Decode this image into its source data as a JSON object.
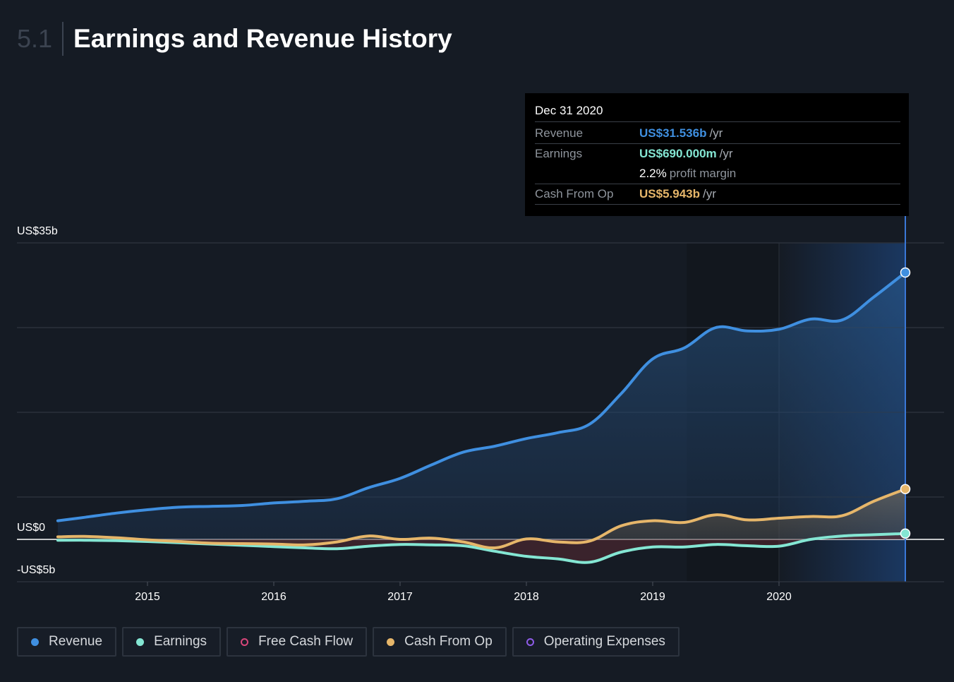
{
  "header": {
    "section_number": "5.1",
    "title": "Earnings and Revenue History"
  },
  "tooltip": {
    "date": "Dec 31 2020",
    "revenue_label": "Revenue",
    "revenue_value": "US$31.536b",
    "revenue_unit": "/yr",
    "earnings_label": "Earnings",
    "earnings_value": "US$690.000m",
    "earnings_unit": "/yr",
    "margin_value": "2.2%",
    "margin_label": "profit margin",
    "cfo_label": "Cash From Op",
    "cfo_value": "US$5.943b",
    "cfo_unit": "/yr"
  },
  "legend": [
    {
      "label": "Revenue",
      "color": "#3f8fe0",
      "filled": true
    },
    {
      "label": "Earnings",
      "color": "#84e6d3",
      "filled": true
    },
    {
      "label": "Free Cash Flow",
      "color": "#d7467a",
      "filled": false
    },
    {
      "label": "Cash From Op",
      "color": "#e6b66a",
      "filled": true
    },
    {
      "label": "Operating Expenses",
      "color": "#8e5ce8",
      "filled": false
    }
  ],
  "chart_data": {
    "type": "area",
    "y_tick_labels": [
      "US$35b",
      "US$0",
      "-US$5b"
    ],
    "ylim": [
      -5,
      35
    ],
    "x_tick_labels": [
      "2015",
      "2016",
      "2017",
      "2018",
      "2019",
      "2020"
    ],
    "x_ticks": [
      2015.0,
      2016.0,
      2017.0,
      2018.0,
      2019.0,
      2020.0
    ],
    "xlim": [
      2014.3,
      2021.3
    ],
    "grid": true,
    "series": [
      {
        "name": "Revenue",
        "color": "#3f8fe0",
        "x": [
          2014.29,
          2014.5,
          2014.75,
          2015.0,
          2015.25,
          2015.5,
          2015.75,
          2016.0,
          2016.25,
          2016.5,
          2016.75,
          2017.0,
          2017.25,
          2017.5,
          2017.75,
          2018.0,
          2018.25,
          2018.5,
          2018.75,
          2019.0,
          2019.25,
          2019.5,
          2019.75,
          2020.0,
          2020.25,
          2020.5,
          2020.75,
          2021.0
        ],
        "values": [
          2.2,
          2.6,
          3.1,
          3.5,
          3.8,
          3.9,
          4.0,
          4.3,
          4.5,
          4.8,
          6.1,
          7.2,
          8.8,
          10.3,
          11.0,
          11.9,
          12.6,
          13.6,
          17.2,
          21.3,
          22.6,
          25.0,
          24.6,
          24.8,
          26.0,
          25.9,
          28.6,
          31.5
        ]
      },
      {
        "name": "Earnings",
        "color": "#84e6d3",
        "x": [
          2014.29,
          2014.5,
          2014.75,
          2015.0,
          2015.25,
          2015.5,
          2015.75,
          2016.0,
          2016.25,
          2016.5,
          2016.75,
          2017.0,
          2017.25,
          2017.5,
          2017.75,
          2018.0,
          2018.25,
          2018.5,
          2018.75,
          2019.0,
          2019.25,
          2019.5,
          2019.75,
          2020.0,
          2020.25,
          2020.5,
          2020.75,
          2021.0
        ],
        "values": [
          -0.1,
          -0.1,
          -0.15,
          -0.25,
          -0.4,
          -0.55,
          -0.7,
          -0.85,
          -1.0,
          -1.1,
          -0.8,
          -0.6,
          -0.65,
          -0.75,
          -1.4,
          -2.0,
          -2.3,
          -2.7,
          -1.5,
          -0.9,
          -0.9,
          -0.6,
          -0.75,
          -0.8,
          0.0,
          0.4,
          0.55,
          0.69
        ]
      },
      {
        "name": "Cash From Op",
        "color": "#e6b66a",
        "x": [
          2014.29,
          2014.5,
          2014.75,
          2015.0,
          2015.25,
          2015.5,
          2015.75,
          2016.0,
          2016.25,
          2016.5,
          2016.75,
          2017.0,
          2017.25,
          2017.5,
          2017.75,
          2018.0,
          2018.25,
          2018.5,
          2018.75,
          2019.0,
          2019.25,
          2019.5,
          2019.75,
          2020.0,
          2020.25,
          2020.5,
          2020.75,
          2021.0
        ],
        "values": [
          0.3,
          0.35,
          0.2,
          -0.05,
          -0.25,
          -0.45,
          -0.5,
          -0.55,
          -0.65,
          -0.3,
          0.4,
          0.0,
          0.15,
          -0.3,
          -1.0,
          0.05,
          -0.3,
          -0.2,
          1.6,
          2.2,
          2.0,
          2.9,
          2.3,
          2.5,
          2.7,
          2.8,
          4.5,
          5.94
        ]
      }
    ]
  }
}
